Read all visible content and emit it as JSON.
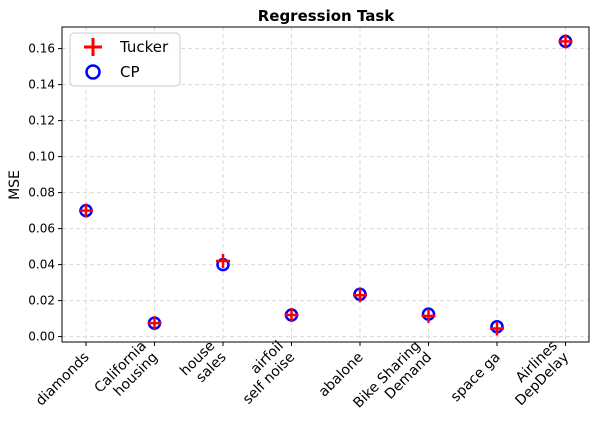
{
  "chart_data": {
    "type": "scatter",
    "title": "Regression Task",
    "xlabel": "",
    "ylabel": "MSE",
    "categories": [
      [
        "diamonds"
      ],
      [
        "California",
        "housing"
      ],
      [
        "house",
        "sales"
      ],
      [
        "airfoil",
        "self noise"
      ],
      [
        "abalone"
      ],
      [
        "Bike Sharing",
        "Demand"
      ],
      [
        "space ga"
      ],
      [
        "Airlines",
        "DepDelay"
      ]
    ],
    "ylim": [
      -0.003,
      0.172
    ],
    "yticks": [
      0.0,
      0.02,
      0.04,
      0.06,
      0.08,
      0.1,
      0.12,
      0.14,
      0.16
    ],
    "ytick_labels": [
      "0.00",
      "0.02",
      "0.04",
      "0.06",
      "0.08",
      "0.10",
      "0.12",
      "0.14",
      "0.16"
    ],
    "grid": true,
    "legend_position": "top-left",
    "series": [
      {
        "name": "Tucker",
        "marker": "plus",
        "color": "#ff0000",
        "values": [
          0.07,
          0.0075,
          0.042,
          0.012,
          0.023,
          0.0115,
          0.0045,
          0.164
        ]
      },
      {
        "name": "CP",
        "marker": "circle",
        "color": "#0000ff",
        "values": [
          0.07,
          0.0075,
          0.04,
          0.012,
          0.0235,
          0.0125,
          0.0055,
          0.164
        ]
      }
    ]
  }
}
